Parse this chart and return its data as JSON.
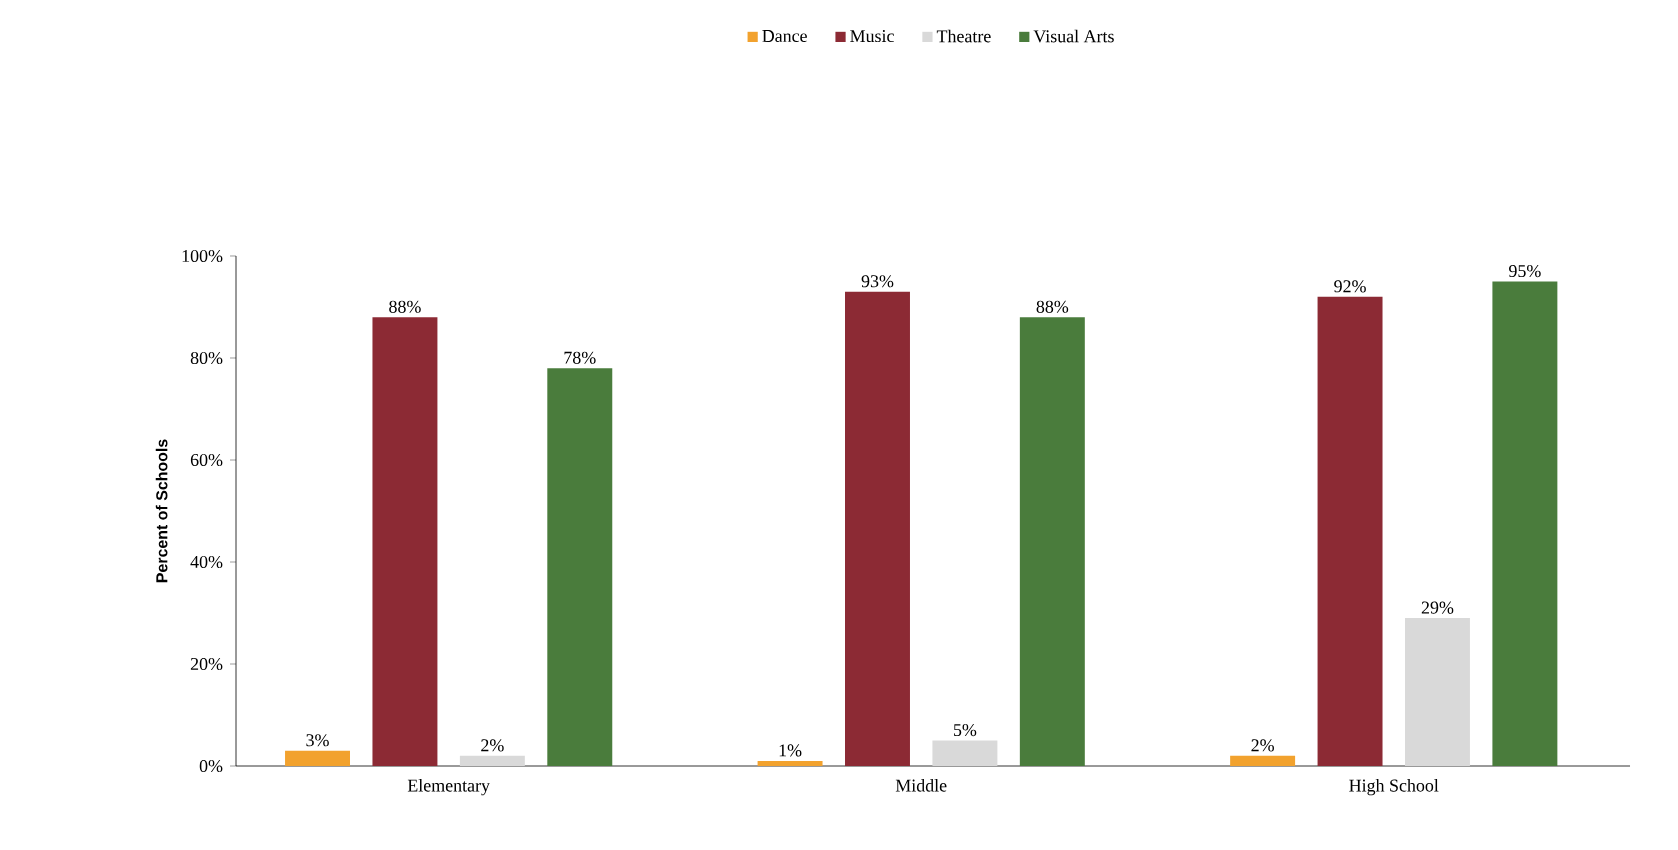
{
  "chart_data": {
    "type": "bar",
    "ylabel": "Percent of Schools",
    "categories": [
      "Elementary",
      "Middle",
      "High School"
    ],
    "series": [
      {
        "name": "Dance",
        "color": "#f2a22e",
        "values": [
          3,
          1,
          2
        ],
        "value_labels": [
          "3%",
          "1%",
          "2%"
        ]
      },
      {
        "name": "Music",
        "color": "#8c2a34",
        "values": [
          88,
          93,
          92
        ],
        "value_labels": [
          "88%",
          "93%",
          "92%"
        ]
      },
      {
        "name": "Theatre",
        "color": "#d9d9d9",
        "values": [
          2,
          5,
          29
        ],
        "value_labels": [
          "2%",
          "5%",
          "29%"
        ]
      },
      {
        "name": "Visual Arts",
        "color": "#4a7c3c",
        "values": [
          78,
          88,
          95
        ],
        "value_labels": [
          "78%",
          "88%",
          "95%"
        ]
      }
    ],
    "ylim": [
      0,
      100
    ],
    "yticks": [
      {
        "value": 0,
        "label": "0%"
      },
      {
        "value": 20,
        "label": "20%"
      },
      {
        "value": 40,
        "label": "40%"
      },
      {
        "value": 60,
        "label": "60%"
      },
      {
        "value": 80,
        "label": "80%"
      },
      {
        "value": 100,
        "label": "100%"
      }
    ],
    "grid": false,
    "legend": "top"
  }
}
